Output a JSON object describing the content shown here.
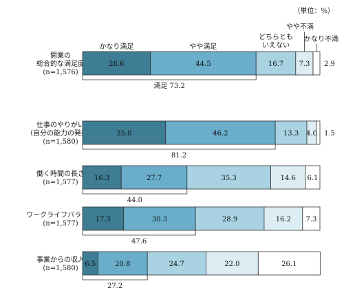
{
  "chart_data": {
    "type": "bar",
    "orientation": "horizontal",
    "stacked": true,
    "unit_note": "（単位：%）",
    "colors": [
      "#3e7d94",
      "#6aaecb",
      "#a9d3e2",
      "#dcedf4",
      "#ffffff"
    ],
    "segment_headers": [
      {
        "lines": [
          "かなり満足"
        ]
      },
      {
        "lines": [
          "やや満足"
        ]
      },
      {
        "lines": [
          "どちらとも",
          "いえない"
        ]
      },
      {
        "lines": [
          "やや不満"
        ]
      },
      {
        "lines": [
          "かなり不満"
        ]
      }
    ],
    "rows": [
      {
        "label_lines": [
          "開業の",
          "総合的な満足度",
          "(n=1,576)"
        ],
        "values": [
          28.6,
          44.5,
          16.7,
          7.3,
          2.9
        ],
        "value_labels": [
          "28.6",
          "44.5",
          "16.7",
          "7.3",
          "2.9"
        ],
        "sum_label": "満足  73.2"
      },
      {
        "label_lines": [
          "仕事のやりがい",
          "（自分の能力の発揮）",
          "(n=1,580)"
        ],
        "values": [
          35.0,
          46.2,
          13.3,
          4.0,
          1.5
        ],
        "value_labels": [
          "35.0",
          "46.2",
          "13.3",
          "4.0",
          "1.5"
        ],
        "sum_label": "81.2"
      },
      {
        "label_lines": [
          "働く時間の長さ",
          "(n=1,577)"
        ],
        "values": [
          16.3,
          27.7,
          35.3,
          14.6,
          6.1
        ],
        "value_labels": [
          "16.3",
          "27.7",
          "35.3",
          "14.6",
          "6.1"
        ],
        "sum_label": "44.0"
      },
      {
        "label_lines": [
          "ワークライフバランス",
          "(n=1,577)"
        ],
        "values": [
          17.3,
          30.3,
          28.9,
          16.2,
          7.3
        ],
        "value_labels": [
          "17.3",
          "30.3",
          "28.9",
          "16.2",
          "7.3"
        ],
        "sum_label": "47.6"
      },
      {
        "label_lines": [
          "事業からの収入",
          "(n=1,580)"
        ],
        "values": [
          6.5,
          20.8,
          24.7,
          22.0,
          26.1
        ],
        "value_labels": [
          "6.5",
          "20.8",
          "24.7",
          "22.0",
          "26.1"
        ],
        "sum_label": "27.2"
      }
    ]
  }
}
